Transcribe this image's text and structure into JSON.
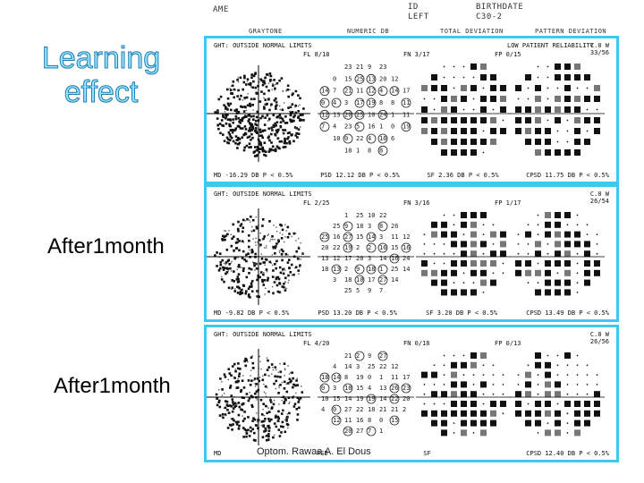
{
  "report_header": {
    "name": "AME",
    "id": "ID",
    "eye": "LEFT",
    "birthdate_label": "BIRTHDATE",
    "test": "C30-2"
  },
  "column_headers": [
    "GRAYTONE",
    "NUMERIC DB",
    "TOTAL DEVIATION",
    "PATTERN DEVIATION"
  ],
  "title": {
    "line1": "Learning",
    "line2": "effect"
  },
  "side_labels": [
    "After1month",
    "After1month"
  ],
  "credit": "Optom. Rawaa A. El Dous",
  "panels": [
    {
      "ght": "GHT: OUTSIDE NORMAL LIMITS",
      "fixation_losses": "FL 8/18",
      "false_negative": "FN 3/17",
      "false_positive": "FP 0/15",
      "reliability": "LOW PATIENT RELIABILITY",
      "camera_values": [
        "C.0 W",
        "33/56"
      ],
      "md": "MD",
      "md_value": "-16.29 DB  P < 0.5%",
      "psd": "PSD",
      "psd_value": "12.12 DB  P < 0.5%",
      "sf": "SF",
      "sf_value": "2.36 DB  P < 0.5%",
      "cpsd": "CPSD",
      "cpsd_value": "11.75 DB  P < 0.5%"
    },
    {
      "ght": "GHT: OUTSIDE NORMAL LIMITS",
      "fixation_losses": "FL 2/25",
      "false_negative": "FN 3/16",
      "false_positive": "FP 1/17",
      "reliability": "",
      "camera_values": [
        "C.0 W",
        "26/54"
      ],
      "md": "MD",
      "md_value": "-9.82 DB  P < 0.5%",
      "psd": "PSD",
      "psd_value": "13.20 DB  P < 0.5%",
      "sf": "SF",
      "sf_value": "3.20 DB  P < 0.5%",
      "cpsd": "CPSD",
      "cpsd_value": "13.49 DB  P < 0.5%"
    },
    {
      "ght": "GHT: OUTSIDE NORMAL LIMITS",
      "fixation_losses": "FL 4/20",
      "false_negative": "FN 0/18",
      "false_positive": "FP 0/13",
      "reliability": "",
      "camera_values": [
        "C.0 W",
        "26/56"
      ],
      "md": "MD",
      "md_value": "",
      "psd": "PSD",
      "psd_value": "",
      "sf": "SF",
      "sf_value": "",
      "cpsd": "CPSD",
      "cpsd_value": "12.40 DB  P < 0.5%"
    }
  ],
  "colors": {
    "panel_border": "#3cc8f0",
    "title_fill": "#9ee3ff",
    "title_stroke": "#1a7fb4"
  }
}
